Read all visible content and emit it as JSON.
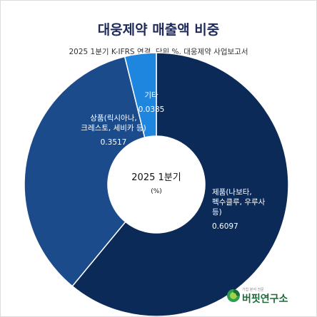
{
  "title": "대웅제약 매출액 비중",
  "subtitle": "2025 1분기 K-IFRS 연결. 단위 %. 대웅제약 사업보고서",
  "center_label": "2025 1분기",
  "center_sublabel": "(%)",
  "colors": {
    "products": "#0b2a57",
    "goods": "#1c4b8c",
    "other": "#1f86e0",
    "title": "#1d2a5a"
  },
  "chart_data": {
    "type": "pie",
    "title": "대웅제약 매출액 비중",
    "subtitle": "2025 1분기 K-IFRS 연결. 단위 %. 대웅제약 사업보고서",
    "categories": [
      "제품(나보타, 펙수클루, 우루사 등)",
      "상품(릭시아나, 크레스토, 세비카 등)",
      "기타"
    ],
    "values": [
      0.6097,
      0.3517,
      0.0385
    ],
    "label_lines": [
      [
        "제품(나보타,",
        "펙수클루, 우루사",
        "등)"
      ],
      [
        "상품(릭시아나,",
        "크레스토, 세비카 등)"
      ],
      [
        "기타"
      ]
    ],
    "value_labels": [
      "0.6097",
      "0.3517",
      "0.0385"
    ],
    "donut": true,
    "start_at": "top",
    "direction": "clockwise"
  },
  "logo": {
    "tagline": "기업 분석 전문",
    "name": "버핏연구소"
  }
}
